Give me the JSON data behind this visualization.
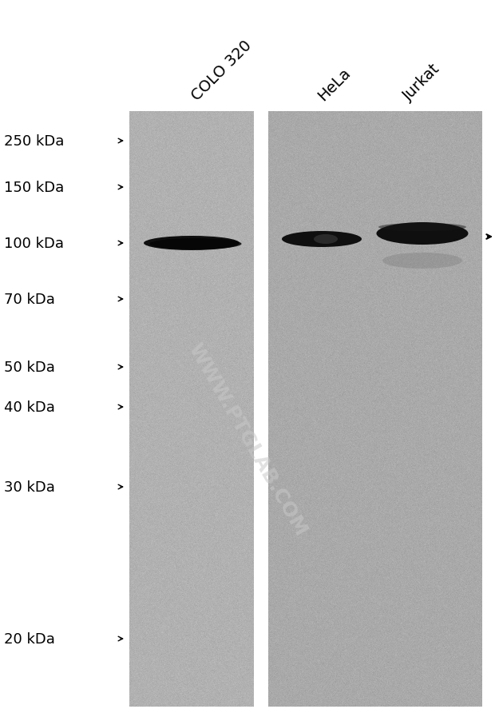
{
  "background_color": "#ffffff",
  "gel_bg_color": "#b0b0b0",
  "fig_width": 6.2,
  "fig_height": 9.03,
  "dpi": 100,
  "lane_labels": [
    "COLO 320",
    "HeLa",
    "Jurkat"
  ],
  "lane_label_rotation": 45,
  "marker_labels": [
    "250 kDa",
    "150 kDa",
    "100 kDa",
    "70 kDa",
    "50 kDa",
    "40 kDa",
    "30 kDa",
    "20 kDa"
  ],
  "watermark_text": "WWW.PTGLAB.COM",
  "watermark_color": "#c8c8c8",
  "watermark_alpha": 0.55,
  "band_color": "#0a0a0a",
  "arrow_color": "#000000",
  "font_size_labels": 14,
  "font_size_markers": 13
}
